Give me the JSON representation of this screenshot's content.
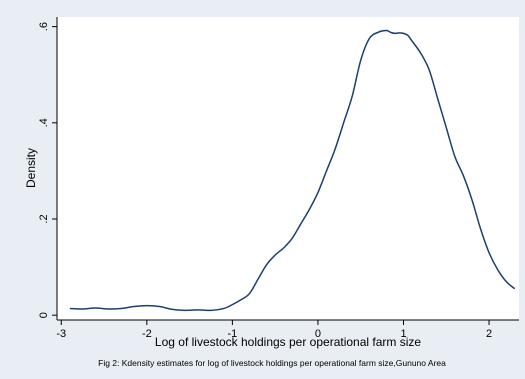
{
  "chart_data": {
    "type": "line",
    "title": "",
    "xlabel": "Log of livestock holdings per operational farm size",
    "ylabel": "Density",
    "note": "Fig 2: Kdensity estimates for log of livestock holdings per operational farm size,Gununo Area",
    "xlim": [
      -3.05,
      2.35
    ],
    "ylim": [
      -0.01,
      0.62
    ],
    "x_ticks": [
      -3,
      -2,
      -1,
      0,
      1,
      2
    ],
    "x_tick_labels": [
      "-3",
      "-2",
      "-1",
      "0",
      "1",
      "2"
    ],
    "y_ticks": [
      0,
      0.2,
      0.4,
      0.6
    ],
    "y_tick_labels": [
      "0",
      ".2",
      ".4",
      ".6"
    ],
    "grid": false,
    "colors": {
      "background": "#e8eef3",
      "plot_area": "#ffffff",
      "line": "#1c3f6e"
    },
    "series": [
      {
        "x": [
          -2.9,
          -2.75,
          -2.6,
          -2.45,
          -2.3,
          -2.15,
          -2.0,
          -1.85,
          -1.7,
          -1.55,
          -1.4,
          -1.25,
          -1.1,
          -1.0,
          -0.9,
          -0.8,
          -0.7,
          -0.6,
          -0.5,
          -0.4,
          -0.3,
          -0.2,
          -0.1,
          0.0,
          0.1,
          0.2,
          0.3,
          0.4,
          0.5,
          0.6,
          0.7,
          0.8,
          0.85,
          0.9,
          0.95,
          1.0,
          1.05,
          1.1,
          1.2,
          1.3,
          1.4,
          1.5,
          1.6,
          1.7,
          1.8,
          1.9,
          2.0,
          2.1,
          2.2,
          2.3
        ],
        "y": [
          0.014,
          0.013,
          0.015,
          0.013,
          0.014,
          0.018,
          0.02,
          0.018,
          0.012,
          0.01,
          0.011,
          0.01,
          0.014,
          0.022,
          0.032,
          0.045,
          0.075,
          0.105,
          0.125,
          0.14,
          0.16,
          0.19,
          0.22,
          0.255,
          0.3,
          0.345,
          0.4,
          0.455,
          0.53,
          0.575,
          0.588,
          0.592,
          0.588,
          0.586,
          0.587,
          0.586,
          0.582,
          0.57,
          0.545,
          0.51,
          0.45,
          0.39,
          0.33,
          0.29,
          0.24,
          0.18,
          0.13,
          0.095,
          0.07,
          0.055
        ]
      }
    ]
  }
}
